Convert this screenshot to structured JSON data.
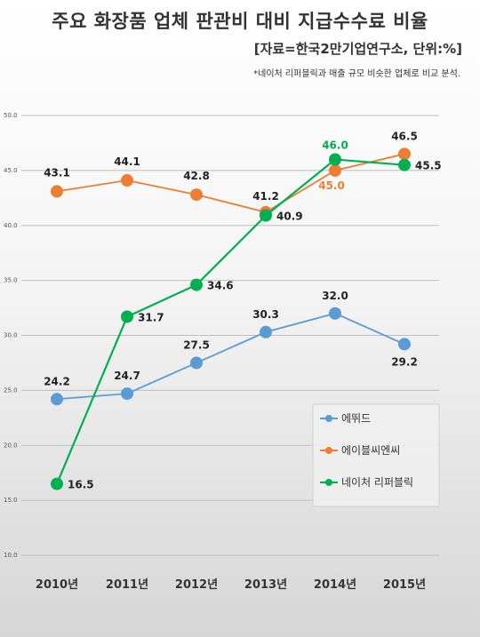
{
  "page": {
    "title": "주요 화장품 업체 판관비 대비 지급수수료 비율",
    "source": "[자료=한국2만기업연구소, 단위:%]",
    "note": "*네이처 리퍼블릭과 매출 규모 비슷한 업체로 비교 분석."
  },
  "chart_data": {
    "type": "line",
    "categories": [
      "2010년",
      "2011년",
      "2012년",
      "2013년",
      "2014년",
      "2015년"
    ],
    "ylim": [
      10,
      50
    ],
    "yticks": [
      "10.0",
      "15.0",
      "20.0",
      "25.0",
      "30.0",
      "35.0",
      "40.0",
      "45.0",
      "50.0"
    ],
    "grid": true,
    "legend_position": "bottom-right",
    "series": [
      {
        "name": "에뛰드",
        "color": "#5b9bd5",
        "values": [
          24.2,
          24.7,
          27.5,
          30.3,
          32.0,
          29.2
        ],
        "labels": [
          "24.2",
          "24.7",
          "27.5",
          "30.3",
          "32.0",
          "29.2"
        ]
      },
      {
        "name": "에이블씨엔씨",
        "color": "#ed7d31",
        "values": [
          43.1,
          44.1,
          42.8,
          41.2,
          45.0,
          46.5
        ],
        "labels": [
          "43.1",
          "44.1",
          "42.8",
          "41.2",
          "45.0",
          "46.5"
        ]
      },
      {
        "name": "네이처 리퍼블릭",
        "color": "#00b050",
        "values": [
          16.5,
          31.7,
          34.6,
          40.9,
          46.0,
          45.5
        ],
        "labels": [
          "16.5",
          "31.7",
          "34.6",
          "40.9",
          "46.0",
          "45.5"
        ]
      }
    ]
  }
}
